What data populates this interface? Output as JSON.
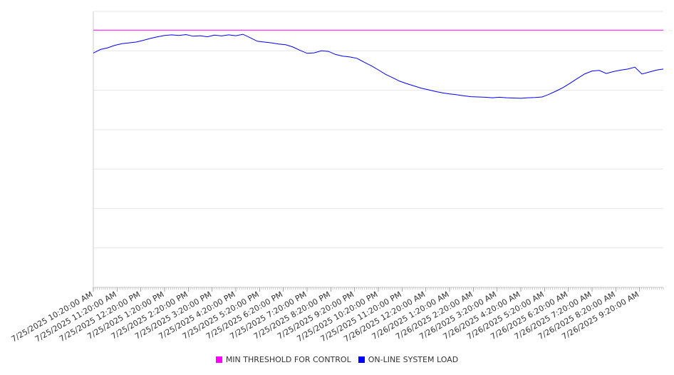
{
  "chart_data": {
    "type": "line",
    "title": "",
    "xlabel": "",
    "ylabel": "",
    "ylim": [
      0,
      1
    ],
    "grid": true,
    "legend_position": "bottom-center",
    "x_tick_labels": [
      "7/25/2025 10:20:00 AM",
      "7/25/2025 11:20:00 AM",
      "7/25/2025 12:20:00 PM",
      "7/25/2025 1:20:00 PM",
      "7/25/2025 2:20:00 PM",
      "7/25/2025 3:20:00 PM",
      "7/25/2025 4:20:00 PM",
      "7/25/2025 5:20:00 PM",
      "7/25/2025 6:20:00 PM",
      "7/25/2025 7:20:00 PM",
      "7/25/2025 8:20:00 PM",
      "7/25/2025 9:20:00 PM",
      "7/25/2025 10:20:00 PM",
      "7/25/2025 11:20:00 PM",
      "7/26/2025 12:20:00 AM",
      "7/26/2025 1:20:00 AM",
      "7/26/2025 2:20:00 AM",
      "7/26/2025 3:20:00 AM",
      "7/26/2025 4:20:00 AM",
      "7/26/2025 5:20:00 AM",
      "7/26/2025 6:20:00 AM",
      "7/26/2025 7:20:00 AM",
      "7/26/2025 8:20:00 AM",
      "7/26/2025 9:20:00 AM"
    ],
    "x_range_hours": [
      0,
      24
    ],
    "series": [
      {
        "name": "MIN THRESHOLD FOR CONTROL",
        "color": "#ff00ff",
        "x": [
          0,
          24
        ],
        "values": [
          0.932,
          0.932
        ]
      },
      {
        "name": "ON-LINE SYSTEM LOAD",
        "color": "#0000ff",
        "x": [
          0,
          0.3,
          0.6,
          0.9,
          1.2,
          1.5,
          1.8,
          2.1,
          2.4,
          2.7,
          3.0,
          3.3,
          3.6,
          3.9,
          4.2,
          4.5,
          4.8,
          5.1,
          5.4,
          5.7,
          6.0,
          6.3,
          6.6,
          6.9,
          7.2,
          7.5,
          7.8,
          8.1,
          8.4,
          8.7,
          9.0,
          9.3,
          9.6,
          9.9,
          10.2,
          10.5,
          10.8,
          11.1,
          11.4,
          11.7,
          12.0,
          12.3,
          12.6,
          12.9,
          13.2,
          13.5,
          13.8,
          14.1,
          14.4,
          14.7,
          15.0,
          15.3,
          15.6,
          15.9,
          16.2,
          16.5,
          16.8,
          17.1,
          17.4,
          17.7,
          18.0,
          18.3,
          18.6,
          18.9,
          19.2,
          19.5,
          19.8,
          20.1,
          20.4,
          20.7,
          21.0,
          21.3,
          21.6,
          21.9,
          22.2,
          22.5,
          22.8,
          23.1,
          23.4,
          23.7,
          24.0
        ],
        "values": [
          0.849,
          0.862,
          0.868,
          0.877,
          0.883,
          0.886,
          0.889,
          0.895,
          0.902,
          0.908,
          0.913,
          0.915,
          0.913,
          0.916,
          0.91,
          0.912,
          0.908,
          0.914,
          0.911,
          0.915,
          0.912,
          0.917,
          0.905,
          0.892,
          0.889,
          0.886,
          0.882,
          0.879,
          0.871,
          0.859,
          0.848,
          0.85,
          0.857,
          0.855,
          0.844,
          0.838,
          0.835,
          0.83,
          0.816,
          0.803,
          0.788,
          0.772,
          0.76,
          0.747,
          0.738,
          0.73,
          0.722,
          0.716,
          0.71,
          0.705,
          0.701,
          0.698,
          0.694,
          0.691,
          0.69,
          0.689,
          0.687,
          0.689,
          0.687,
          0.686,
          0.685,
          0.687,
          0.688,
          0.69,
          0.7,
          0.712,
          0.725,
          0.741,
          0.758,
          0.774,
          0.784,
          0.786,
          0.775,
          0.782,
          0.787,
          0.791,
          0.798,
          0.773,
          0.78,
          0.787,
          0.791
        ]
      }
    ]
  }
}
